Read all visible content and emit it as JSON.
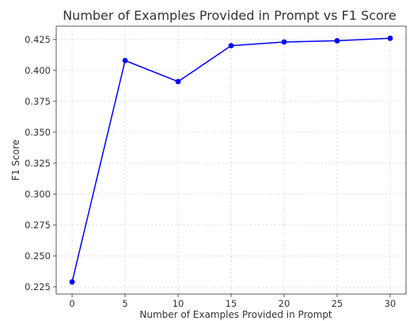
{
  "chart_data": {
    "type": "line",
    "title": "Number of Examples Provided in Prompt vs F1 Score",
    "xlabel": "Number of Examples Provided in Prompt",
    "ylabel": "F1 Score",
    "x": [
      0,
      5,
      10,
      15,
      20,
      25,
      30
    ],
    "series": [
      {
        "values": [
          0.229,
          0.408,
          0.391,
          0.42,
          0.423,
          0.424,
          0.426
        ],
        "color": "#0000ff",
        "marker": "circle"
      }
    ],
    "xlim": [
      -1.5,
      31.5
    ],
    "ylim": [
      0.2192,
      0.4358
    ],
    "xticks": [
      0,
      5,
      10,
      15,
      20,
      25,
      30
    ],
    "yticks": [
      0.225,
      0.25,
      0.275,
      0.3,
      0.325,
      0.35,
      0.375,
      0.4,
      0.425
    ],
    "xtick_labels": [
      "0",
      "5",
      "10",
      "15",
      "20",
      "25",
      "30"
    ],
    "ytick_labels": [
      "0.225",
      "0.250",
      "0.275",
      "0.300",
      "0.325",
      "0.350",
      "0.375",
      "0.400",
      "0.425"
    ],
    "grid": true,
    "grid_style": "dashed"
  }
}
